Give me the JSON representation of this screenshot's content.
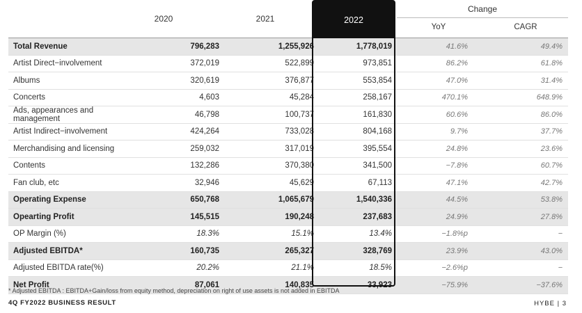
{
  "header": {
    "years": [
      "2020",
      "2021",
      "2022"
    ],
    "change_label": "Change",
    "change_cols": [
      "YoY",
      "CAGR"
    ]
  },
  "rows": [
    {
      "label": "Total Revenue",
      "v2020": "796,283",
      "v2021": "1,255,926",
      "v2022": "1,778,019",
      "yoy": "41.6%",
      "cagr": "49.4%"
    },
    {
      "label": "Artist Direct−involvement",
      "v2020": "372,019",
      "v2021": "522,899",
      "v2022": "973,851",
      "yoy": "86.2%",
      "cagr": "61.8%"
    },
    {
      "label": "Albums",
      "v2020": "320,619",
      "v2021": "376,877",
      "v2022": "553,854",
      "yoy": "47.0%",
      "cagr": "31.4%"
    },
    {
      "label": "Concerts",
      "v2020": "4,603",
      "v2021": "45,284",
      "v2022": "258,167",
      "yoy": "470.1%",
      "cagr": "648.9%"
    },
    {
      "label": "Ads, appearances and management",
      "v2020": "46,798",
      "v2021": "100,737",
      "v2022": "161,830",
      "yoy": "60.6%",
      "cagr": "86.0%"
    },
    {
      "label": "Artist Indirect−involvement",
      "v2020": "424,264",
      "v2021": "733,028",
      "v2022": "804,168",
      "yoy": "9.7%",
      "cagr": "37.7%"
    },
    {
      "label": "Merchandising and licensing",
      "v2020": "259,032",
      "v2021": "317,019",
      "v2022": "395,554",
      "yoy": "24.8%",
      "cagr": "23.6%"
    },
    {
      "label": "Contents",
      "v2020": "132,286",
      "v2021": "370,380",
      "v2022": "341,500",
      "yoy": "−7.8%",
      "cagr": "60.7%"
    },
    {
      "label": "Fan club, etc",
      "v2020": "32,946",
      "v2021": "45,629",
      "v2022": "67,113",
      "yoy": "47.1%",
      "cagr": "42.7%"
    },
    {
      "label": "Operating Expense",
      "v2020": "650,768",
      "v2021": "1,065,679",
      "v2022": "1,540,336",
      "yoy": "44.5%",
      "cagr": "53.8%"
    },
    {
      "label": "Opearting Profit",
      "v2020": "145,515",
      "v2021": "190,248",
      "v2022": "237,683",
      "yoy": "24.9%",
      "cagr": "27.8%"
    },
    {
      "label": "OP Margin (%)",
      "v2020": "18.3%",
      "v2021": "15.1%",
      "v2022": "13.4%",
      "yoy": "−1.8%p",
      "cagr": "−"
    },
    {
      "label": "Adjusted EBITDA*",
      "v2020": "160,735",
      "v2021": "265,327",
      "v2022": "328,769",
      "yoy": "23.9%",
      "cagr": "43.0%"
    },
    {
      "label": "Adjusted EBITDA rate(%)",
      "v2020": "20.2%",
      "v2021": "21.1%",
      "v2022": "18.5%",
      "yoy": "−2.6%p",
      "cagr": "−"
    },
    {
      "label": "Net Profit",
      "v2020": "87,061",
      "v2021": "140,835",
      "v2022": "33,923",
      "yoy": "−75.9%",
      "cagr": "−37.6%"
    }
  ],
  "footnote": "* Adjusted EBITDA : EBITDA+Gain/loss from equity method, depreciation on right of use assets is not added in EBITDA",
  "brand": "4Q FY2022 BUSINESS RESULT",
  "page": "HYBE | 3"
}
